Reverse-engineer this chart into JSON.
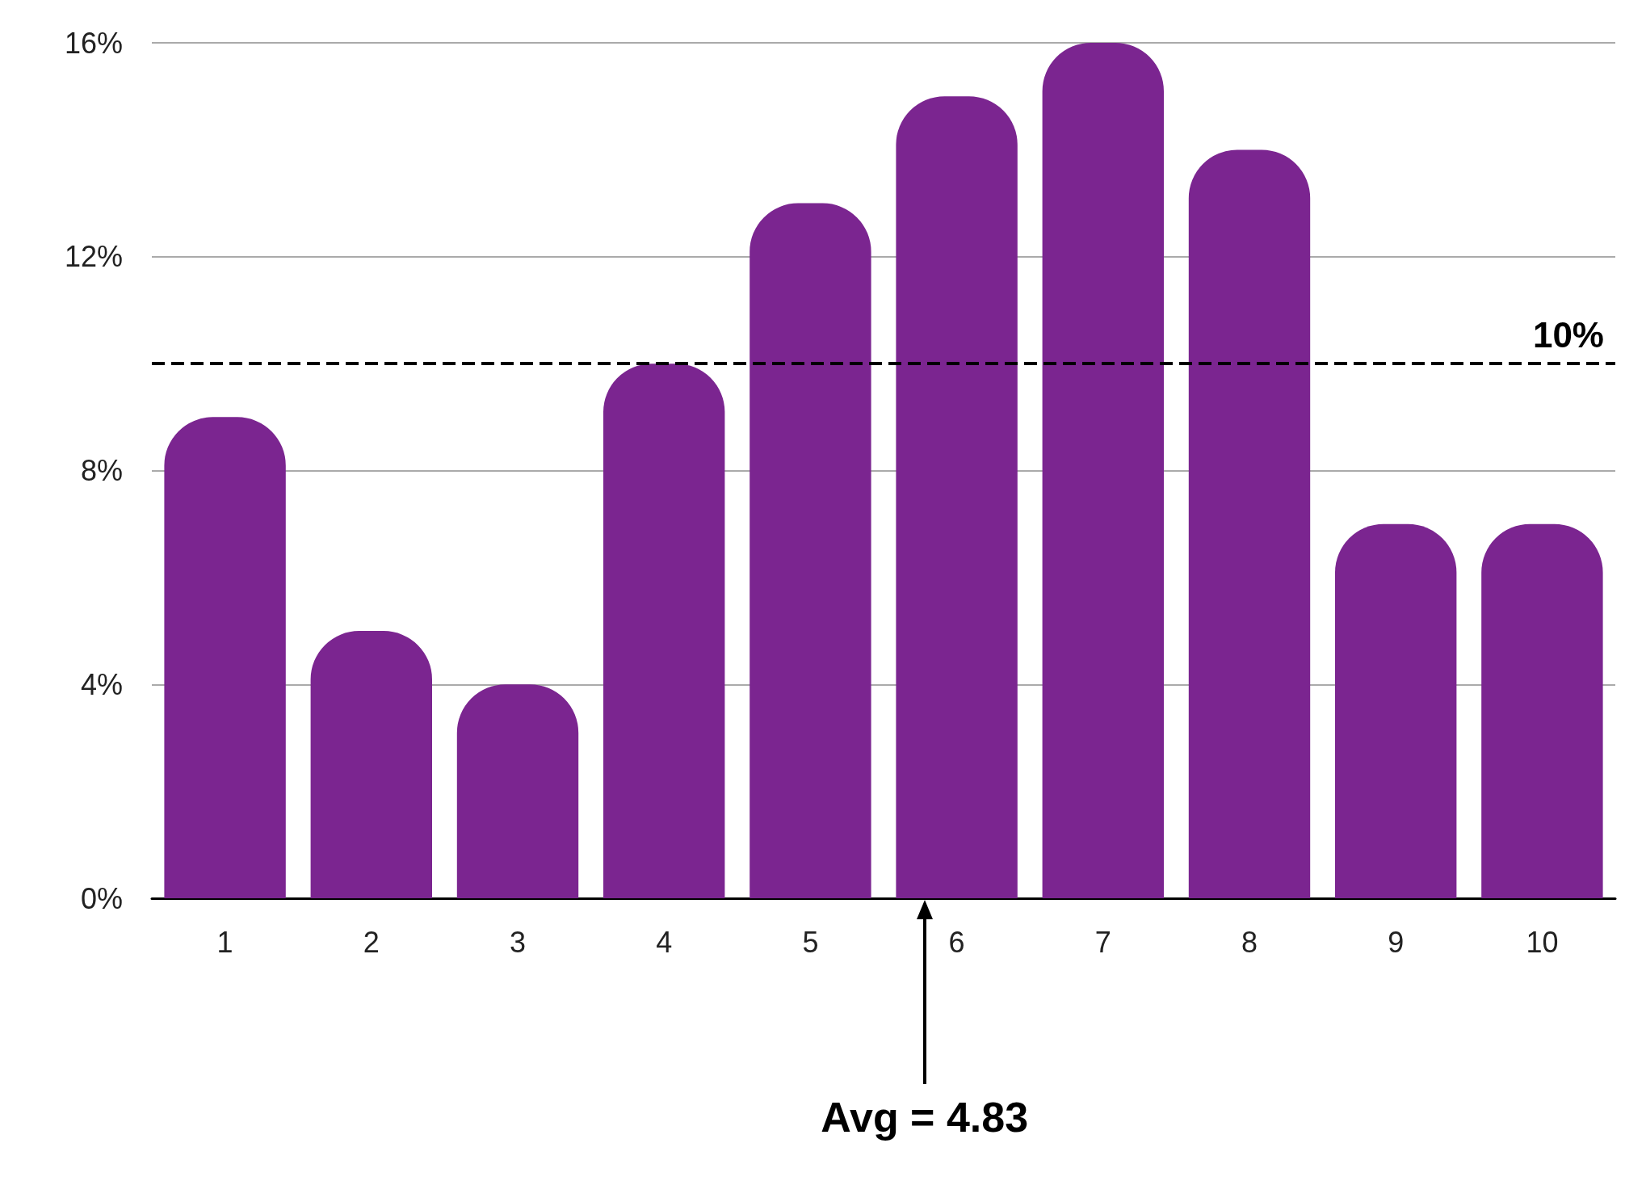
{
  "chart_data": {
    "type": "bar",
    "categories": [
      "1",
      "2",
      "3",
      "4",
      "5",
      "6",
      "7",
      "8",
      "9",
      "10"
    ],
    "values": [
      9,
      5,
      4,
      10,
      13,
      15,
      16,
      14,
      7,
      7
    ],
    "color": "#7b2590",
    "ylim": [
      0,
      16
    ],
    "yticks": [
      {
        "value": 0,
        "label": "0%"
      },
      {
        "value": 4,
        "label": "4%"
      },
      {
        "value": 8,
        "label": "8%"
      },
      {
        "value": 12,
        "label": "12%"
      },
      {
        "value": 16,
        "label": "16%"
      }
    ],
    "grid": "y",
    "ref_lines": [
      {
        "axis": "y",
        "value": 10,
        "label": "10%",
        "color": "#000000",
        "line_style": "dashed"
      }
    ],
    "annotations": [
      "Avg = 4.83"
    ]
  }
}
